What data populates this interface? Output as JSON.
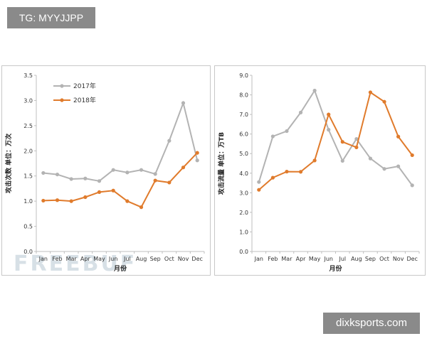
{
  "tags": {
    "top": "TG: MYYJJPP",
    "bottom": "dixksports.com"
  },
  "watermark": "FREEBUF",
  "colors": {
    "s2017": "#b3b3b3",
    "s2018": "#e07b2c",
    "axis": "#bfbfbf"
  },
  "chart_data": [
    {
      "type": "line",
      "ylabel": "攻击次数  单位：万次",
      "xlabel": "月份",
      "categories": [
        "Jan",
        "Feb",
        "Mar",
        "Apr",
        "May",
        "Jun",
        "Jul",
        "Aug",
        "Sep",
        "Oct",
        "Nov",
        "Dec"
      ],
      "ylim": [
        0,
        3.5
      ],
      "yticks": [
        "0.0",
        "0.5",
        "1.0",
        "1.5",
        "2.0",
        "2.5",
        "3.0",
        "3.5"
      ],
      "legend": "top-left",
      "grid": false,
      "series": [
        {
          "name": "2017年",
          "values": [
            1.56,
            1.53,
            1.44,
            1.45,
            1.4,
            1.62,
            1.57,
            1.62,
            1.54,
            2.2,
            2.95,
            1.81
          ]
        },
        {
          "name": "2018年",
          "values": [
            1.01,
            1.02,
            1.0,
            1.08,
            1.18,
            1.21,
            1.0,
            0.88,
            1.41,
            1.37,
            1.67,
            1.96
          ]
        }
      ]
    },
    {
      "type": "line",
      "ylabel": "攻击流量  单位：万TB",
      "xlabel": "月份",
      "categories": [
        "Jan",
        "Feb",
        "Mar",
        "Apr",
        "May",
        "Jun",
        "Jul",
        "Aug",
        "Sep",
        "Oct",
        "Nov",
        "Dec"
      ],
      "ylim": [
        0,
        9
      ],
      "yticks": [
        "0.0",
        "1.0",
        "2.0",
        "3.0",
        "4.0",
        "5.0",
        "6.0",
        "7.0",
        "8.0",
        "9.0"
      ],
      "legend": "none",
      "grid": false,
      "series": [
        {
          "name": "2017年",
          "values": [
            3.55,
            5.88,
            6.15,
            7.1,
            8.22,
            6.22,
            4.63,
            5.75,
            4.75,
            4.22,
            4.35,
            3.38
          ]
        },
        {
          "name": "2018年",
          "values": [
            3.15,
            3.77,
            4.08,
            4.07,
            4.65,
            7.0,
            5.6,
            5.32,
            8.13,
            7.65,
            5.87,
            4.92
          ]
        }
      ]
    }
  ]
}
